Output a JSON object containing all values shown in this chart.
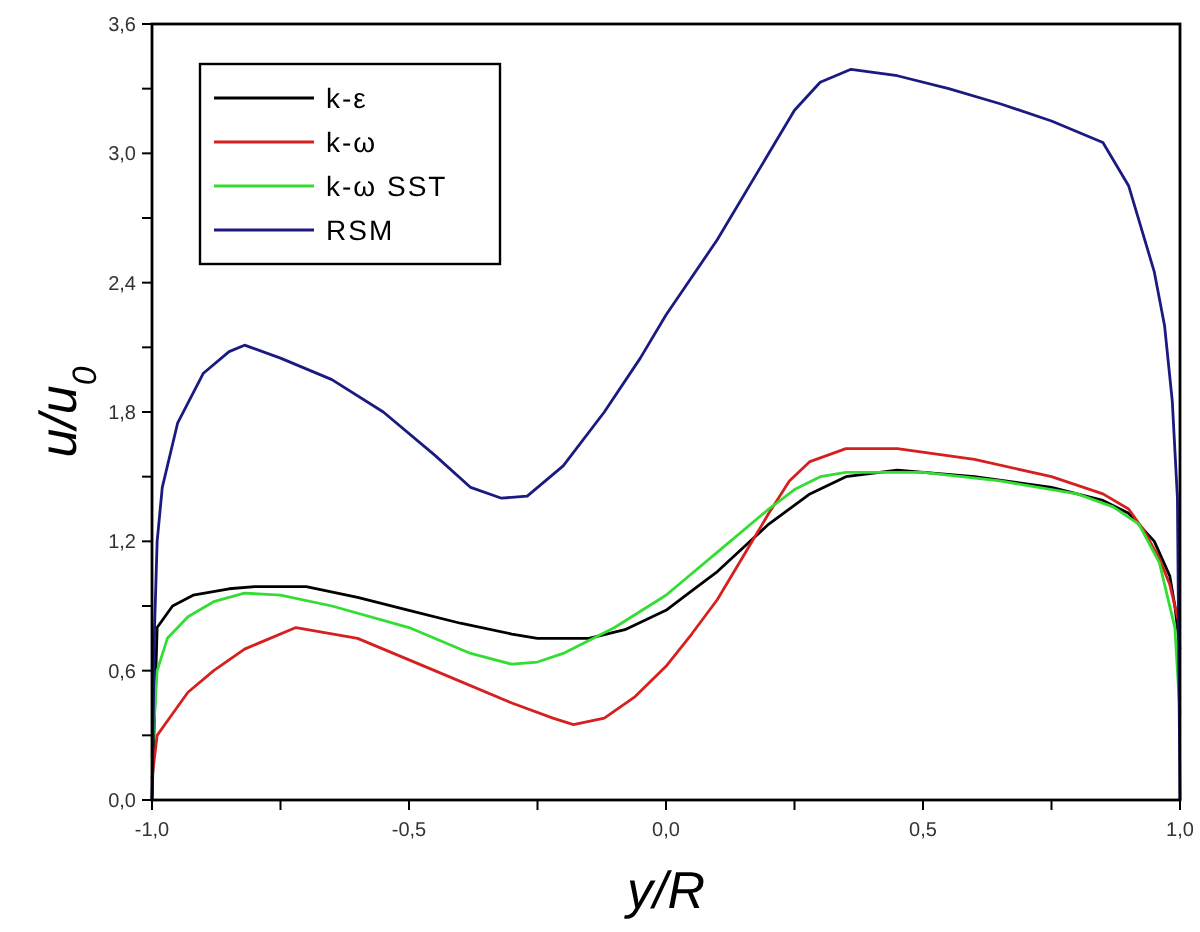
{
  "chart_data": {
    "type": "line",
    "xlabel": "y/R",
    "ylabel": "u/u$_{0}$",
    "xlim": [
      -1,
      1
    ],
    "ylim": [
      0,
      3.6
    ],
    "xticks": [
      {
        "value": -1,
        "label": "-1,0"
      },
      {
        "value": -0.75,
        "label": null
      },
      {
        "value": -0.5,
        "label": "-0,5"
      },
      {
        "value": -0.25,
        "label": null
      },
      {
        "value": 0,
        "label": "0,0"
      },
      {
        "value": 0.25,
        "label": null
      },
      {
        "value": 0.5,
        "label": "0,5"
      },
      {
        "value": 0.75,
        "label": null
      },
      {
        "value": 1,
        "label": "1,0"
      }
    ],
    "yticks": [
      {
        "value": 0,
        "label": "0,0"
      },
      {
        "value": 0.3,
        "label": null
      },
      {
        "value": 0.6,
        "label": "0,6"
      },
      {
        "value": 0.9,
        "label": null
      },
      {
        "value": 1.2,
        "label": "1,2"
      },
      {
        "value": 1.5,
        "label": null
      },
      {
        "value": 1.8,
        "label": "1,8"
      },
      {
        "value": 2.1,
        "label": null
      },
      {
        "value": 2.4,
        "label": "2,4"
      },
      {
        "value": 2.7,
        "label": null
      },
      {
        "value": 3.0,
        "label": "3,0"
      },
      {
        "value": 3.3,
        "label": null
      },
      {
        "value": 3.6,
        "label": "3,6"
      }
    ],
    "legend": "top left",
    "grid": false,
    "marker": "none",
    "line_style": "solid",
    "series": [
      {
        "name": "k-ε",
        "color": "#000000",
        "x": [
          -1,
          -0.99,
          -0.96,
          -0.92,
          -0.85,
          -0.8,
          -0.7,
          -0.6,
          -0.5,
          -0.4,
          -0.3,
          -0.25,
          -0.15,
          -0.08,
          0,
          0.05,
          0.1,
          0.15,
          0.2,
          0.28,
          0.35,
          0.45,
          0.6,
          0.75,
          0.85,
          0.9,
          0.95,
          0.98,
          0.99,
          1
        ],
        "values": [
          0,
          0.8,
          0.9,
          0.95,
          0.98,
          0.99,
          0.99,
          0.94,
          0.88,
          0.82,
          0.77,
          0.75,
          0.75,
          0.79,
          0.88,
          0.97,
          1.06,
          1.17,
          1.28,
          1.42,
          1.5,
          1.53,
          1.5,
          1.45,
          1.39,
          1.33,
          1.2,
          1.04,
          0.9,
          0.7
        ]
      },
      {
        "name": "k-ω",
        "color": "#d62020",
        "x": [
          -1,
          -0.99,
          -0.96,
          -0.93,
          -0.88,
          -0.82,
          -0.72,
          -0.6,
          -0.45,
          -0.3,
          -0.22,
          -0.18,
          -0.12,
          -0.06,
          0,
          0.05,
          0.1,
          0.15,
          0.2,
          0.24,
          0.28,
          0.35,
          0.45,
          0.6,
          0.75,
          0.85,
          0.9,
          0.93,
          0.96,
          0.98,
          1
        ],
        "values": [
          0.1,
          0.3,
          0.4,
          0.5,
          0.6,
          0.7,
          0.8,
          0.75,
          0.6,
          0.45,
          0.38,
          0.35,
          0.38,
          0.48,
          0.62,
          0.77,
          0.93,
          1.13,
          1.33,
          1.48,
          1.57,
          1.63,
          1.63,
          1.58,
          1.5,
          1.42,
          1.35,
          1.25,
          1.12,
          1.0,
          0.8
        ]
      },
      {
        "name": "k-ω SST",
        "color": "#33dd33",
        "x": [
          -1,
          -0.99,
          -0.97,
          -0.93,
          -0.88,
          -0.82,
          -0.75,
          -0.65,
          -0.5,
          -0.38,
          -0.3,
          -0.25,
          -0.2,
          -0.1,
          0,
          0.1,
          0.2,
          0.25,
          0.3,
          0.35,
          0.5,
          0.65,
          0.8,
          0.87,
          0.92,
          0.96,
          0.99,
          1
        ],
        "values": [
          0.2,
          0.6,
          0.75,
          0.85,
          0.92,
          0.96,
          0.95,
          0.9,
          0.8,
          0.68,
          0.63,
          0.64,
          0.68,
          0.8,
          0.95,
          1.15,
          1.35,
          1.44,
          1.5,
          1.52,
          1.52,
          1.48,
          1.42,
          1.36,
          1.28,
          1.1,
          0.8,
          0.4
        ]
      },
      {
        "name": "RSM",
        "color": "#1a1a80",
        "x": [
          -1,
          -0.995,
          -0.99,
          -0.98,
          -0.95,
          -0.9,
          -0.85,
          -0.82,
          -0.75,
          -0.65,
          -0.55,
          -0.45,
          -0.38,
          -0.32,
          -0.27,
          -0.2,
          -0.12,
          -0.05,
          0,
          0.1,
          0.2,
          0.25,
          0.3,
          0.36,
          0.45,
          0.55,
          0.65,
          0.75,
          0.85,
          0.9,
          0.95,
          0.97,
          0.985,
          0.995,
          1
        ],
        "values": [
          0,
          0.8,
          1.2,
          1.45,
          1.75,
          1.98,
          2.08,
          2.11,
          2.05,
          1.95,
          1.8,
          1.6,
          1.45,
          1.4,
          1.41,
          1.55,
          1.8,
          2.05,
          2.25,
          2.6,
          3.0,
          3.2,
          3.33,
          3.39,
          3.36,
          3.3,
          3.23,
          3.15,
          3.05,
          2.85,
          2.45,
          2.2,
          1.85,
          1.4,
          0
        ]
      }
    ]
  }
}
